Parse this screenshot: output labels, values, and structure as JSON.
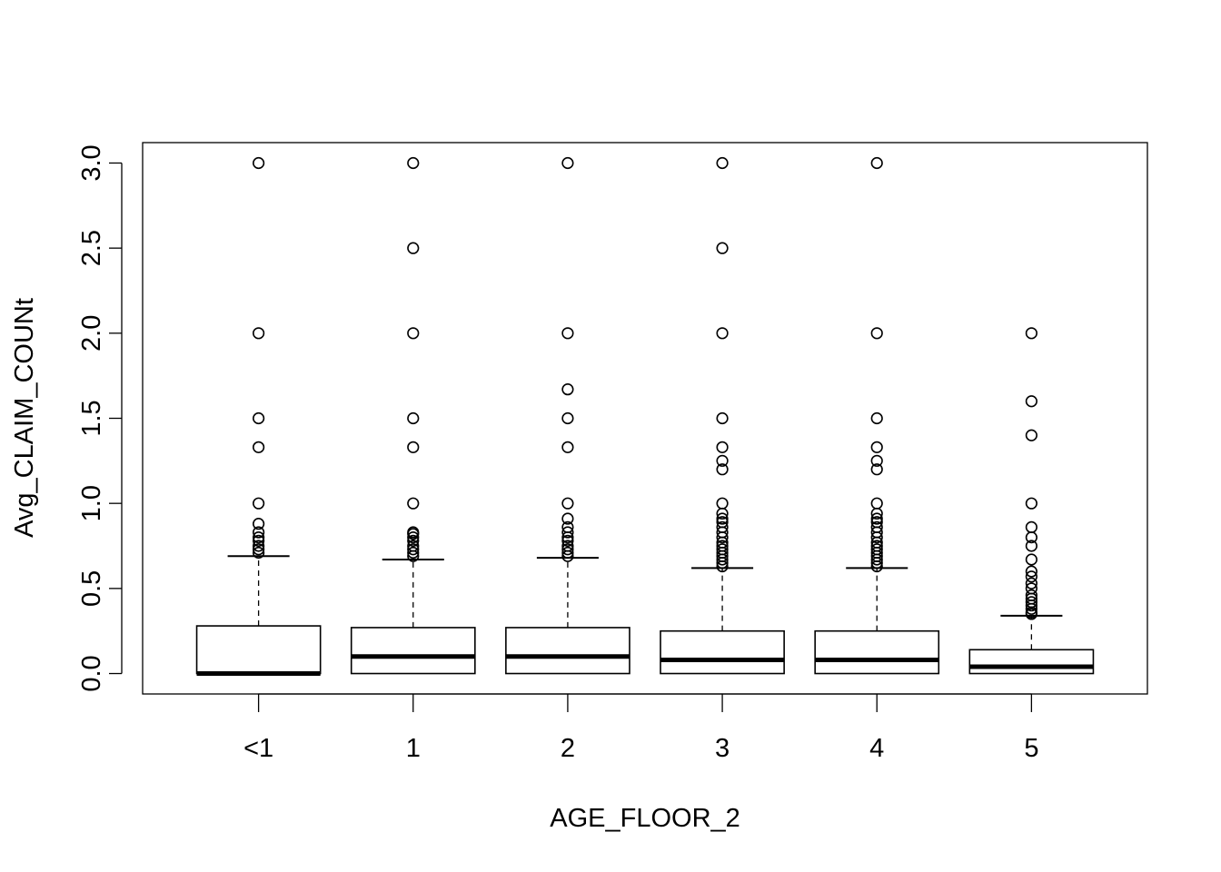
{
  "chart_data": {
    "type": "boxplot",
    "title": "",
    "xlabel": "AGE_FLOOR_2",
    "ylabel": "Avg_CLAIM_COUNt",
    "ylim": [
      -0.12,
      3.12
    ],
    "yticks": [
      0.0,
      0.5,
      1.0,
      1.5,
      2.0,
      2.5,
      3.0
    ],
    "ytick_labels": [
      "0.0",
      "0.5",
      "1.0",
      "1.5",
      "2.0",
      "2.5",
      "3.0"
    ],
    "categories": [
      "<1",
      "1",
      "2",
      "3",
      "4",
      "5"
    ],
    "grid": false,
    "legend": "none",
    "boxes": [
      {
        "label": "<1",
        "whisker_low": 0.0,
        "q1": 0.0,
        "median": 0.0,
        "q3": 0.28,
        "whisker_high": 0.69,
        "outliers": [
          0.71,
          0.73,
          0.75,
          0.78,
          0.8,
          0.83,
          0.88,
          1.0,
          1.33,
          1.5,
          2.0,
          3.0
        ]
      },
      {
        "label": "1",
        "whisker_low": 0.0,
        "q1": 0.0,
        "median": 0.1,
        "q3": 0.27,
        "whisker_high": 0.67,
        "outliers": [
          0.69,
          0.71,
          0.73,
          0.75,
          0.78,
          0.8,
          0.82,
          0.83,
          1.0,
          1.33,
          1.5,
          2.0,
          2.5,
          3.0
        ]
      },
      {
        "label": "2",
        "whisker_low": 0.0,
        "q1": 0.0,
        "median": 0.1,
        "q3": 0.27,
        "whisker_high": 0.68,
        "outliers": [
          0.69,
          0.71,
          0.73,
          0.75,
          0.78,
          0.8,
          0.83,
          0.86,
          0.91,
          1.0,
          1.33,
          1.5,
          1.67,
          2.0,
          3.0
        ]
      },
      {
        "label": "3",
        "whisker_low": 0.0,
        "q1": 0.0,
        "median": 0.08,
        "q3": 0.25,
        "whisker_high": 0.62,
        "outliers": [
          0.63,
          0.65,
          0.67,
          0.69,
          0.71,
          0.73,
          0.75,
          0.77,
          0.8,
          0.83,
          0.86,
          0.89,
          0.91,
          0.94,
          1.0,
          1.2,
          1.25,
          1.33,
          1.5,
          2.0,
          2.5,
          3.0
        ]
      },
      {
        "label": "4",
        "whisker_low": 0.0,
        "q1": 0.0,
        "median": 0.08,
        "q3": 0.25,
        "whisker_high": 0.62,
        "outliers": [
          0.63,
          0.65,
          0.67,
          0.69,
          0.71,
          0.73,
          0.75,
          0.77,
          0.8,
          0.83,
          0.86,
          0.89,
          0.91,
          0.94,
          1.0,
          1.2,
          1.25,
          1.33,
          1.5,
          2.0,
          3.0
        ]
      },
      {
        "label": "5",
        "whisker_low": 0.0,
        "q1": 0.0,
        "median": 0.04,
        "q3": 0.14,
        "whisker_high": 0.34,
        "outliers": [
          0.35,
          0.36,
          0.38,
          0.4,
          0.42,
          0.44,
          0.46,
          0.5,
          0.53,
          0.57,
          0.6,
          0.67,
          0.75,
          0.8,
          0.86,
          1.0,
          1.4,
          1.6,
          2.0
        ]
      }
    ]
  }
}
